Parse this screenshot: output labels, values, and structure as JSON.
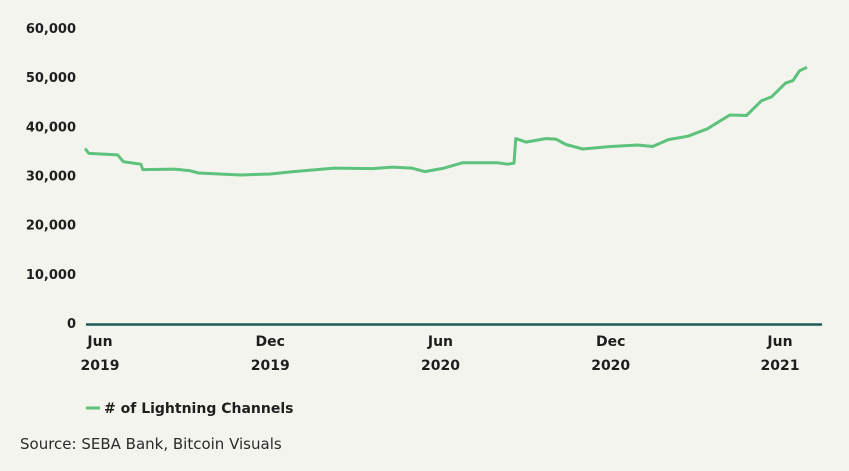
{
  "chart_data": {
    "type": "line",
    "title": "",
    "xlabel": "",
    "ylabel": "",
    "ylim": [
      0,
      60000
    ],
    "y_ticks": [
      "0",
      "10,000",
      "20,000",
      "30,000",
      "40,000",
      "50,000",
      "60,000"
    ],
    "y_tick_values": [
      0,
      10000,
      20000,
      30000,
      40000,
      50000,
      60000
    ],
    "x_ticks": [
      {
        "date": "2019-06-01",
        "month": "Jun",
        "year": "2019"
      },
      {
        "date": "2019-12-01",
        "month": "Dec",
        "year": "2019"
      },
      {
        "date": "2020-06-01",
        "month": "Jun",
        "year": "2020"
      },
      {
        "date": "2020-12-01",
        "month": "Dec",
        "year": "2020"
      },
      {
        "date": "2021-06-01",
        "month": "Jun",
        "year": "2021"
      }
    ],
    "grid": false,
    "legend_placement": "bottom-left",
    "series": [
      {
        "name": "# of Lightning Channels",
        "color": "#5dc27b",
        "points": [
          [
            "2019-05-16",
            35500
          ],
          [
            "2019-05-20",
            34500
          ],
          [
            "2019-06-20",
            34200
          ],
          [
            "2019-06-26",
            32800
          ],
          [
            "2019-07-15",
            32300
          ],
          [
            "2019-07-17",
            31200
          ],
          [
            "2019-08-20",
            31300
          ],
          [
            "2019-09-05",
            31000
          ],
          [
            "2019-09-15",
            30500
          ],
          [
            "2019-10-30",
            30100
          ],
          [
            "2019-12-01",
            30300
          ],
          [
            "2019-12-26",
            30800
          ],
          [
            "2020-02-08",
            31500
          ],
          [
            "2020-03-20",
            31400
          ],
          [
            "2020-04-10",
            31700
          ],
          [
            "2020-05-01",
            31500
          ],
          [
            "2020-05-15",
            30800
          ],
          [
            "2020-06-05",
            31500
          ],
          [
            "2020-06-25",
            32600
          ],
          [
            "2020-08-01",
            32600
          ],
          [
            "2020-08-12",
            32300
          ],
          [
            "2020-08-19",
            32500
          ],
          [
            "2020-08-21",
            37500
          ],
          [
            "2020-09-01",
            36800
          ],
          [
            "2020-09-22",
            37500
          ],
          [
            "2020-10-03",
            37400
          ],
          [
            "2020-10-14",
            36300
          ],
          [
            "2020-11-01",
            35400
          ],
          [
            "2020-12-01",
            35900
          ],
          [
            "2020-12-30",
            36200
          ],
          [
            "2021-01-15",
            35900
          ],
          [
            "2021-02-01",
            37300
          ],
          [
            "2021-02-22",
            38000
          ],
          [
            "2021-03-15",
            39500
          ],
          [
            "2021-04-08",
            42300
          ],
          [
            "2021-04-26",
            42200
          ],
          [
            "2021-05-12",
            45200
          ],
          [
            "2021-05-23",
            46000
          ],
          [
            "2021-06-07",
            48800
          ],
          [
            "2021-06-15",
            49300
          ],
          [
            "2021-06-22",
            51300
          ],
          [
            "2021-06-30",
            52000
          ]
        ]
      }
    ],
    "axis_color": "#1f5a55"
  },
  "source": "Source: SEBA Bank, Bitcoin Visuals"
}
